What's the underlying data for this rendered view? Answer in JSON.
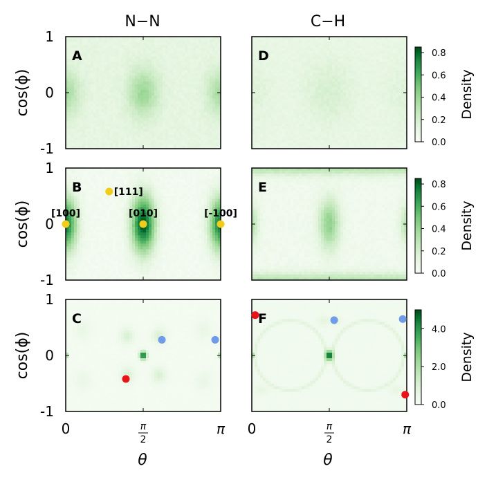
{
  "chart_data": {
    "type": "heatmap",
    "columns": [
      {
        "title": "N−N",
        "panels": [
          "A",
          "B",
          "C"
        ]
      },
      {
        "title": "C−H",
        "panels": [
          "D",
          "E",
          "F"
        ]
      }
    ],
    "xlabel": "θ",
    "ylabel": "cos(ϕ)",
    "x_ticks": [
      "0",
      "π/2",
      "π"
    ],
    "x_tick_values": [
      0,
      1.5708,
      3.1416
    ],
    "y_ticks": [
      "1",
      "0",
      "-1"
    ],
    "y_tick_values": [
      1,
      0,
      -1
    ],
    "xlim": [
      0,
      3.1416
    ],
    "ylim": [
      -1,
      1
    ],
    "colormap": "Greens",
    "panels": [
      {
        "id": "A",
        "row": 0,
        "col": 0,
        "label": "A",
        "scale": "low",
        "colorbar": null,
        "features": [
          {
            "x": 0,
            "y": 0,
            "sx": 0.2,
            "sy": 0.28,
            "w": 0.28
          },
          {
            "x": 1.5708,
            "y": 0,
            "sx": 0.22,
            "sy": 0.3,
            "w": 0.32
          },
          {
            "x": 3.1416,
            "y": 0,
            "sx": 0.2,
            "sy": 0.28,
            "w": 0.28
          }
        ],
        "background": 0.14,
        "markers": []
      },
      {
        "id": "B",
        "row": 1,
        "col": 0,
        "label": "B",
        "scale": "low",
        "colorbar": null,
        "features": [
          {
            "x": 0,
            "y": 0,
            "sx": 0.16,
            "sy": 0.34,
            "w": 0.85
          },
          {
            "x": 1.5708,
            "y": 0,
            "sx": 0.17,
            "sy": 0.36,
            "w": 0.95
          },
          {
            "x": 3.1416,
            "y": 0,
            "sx": 0.16,
            "sy": 0.34,
            "w": 0.85
          }
        ],
        "background": 0.04,
        "markers": [
          {
            "x": 0.88,
            "y": 0.58,
            "color": "#f2cc1a",
            "label": "[111]"
          },
          {
            "x": 0.0,
            "y": 0.0,
            "color": "#f2cc1a",
            "label": "[100]"
          },
          {
            "x": 1.5708,
            "y": 0.0,
            "color": "#f2cc1a",
            "label": "[010]"
          },
          {
            "x": 3.1416,
            "y": 0.0,
            "color": "#f2cc1a",
            "label": "[-100]"
          }
        ]
      },
      {
        "id": "C",
        "row": 2,
        "col": 0,
        "label": "C",
        "scale": "high",
        "colorbar": null,
        "features": [
          {
            "x": 1.5708,
            "y": 0,
            "sx": 0.05,
            "sy": 0.05,
            "w": 1.0
          },
          {
            "x": 0,
            "y": 0,
            "sx": 0.03,
            "sy": 0.03,
            "w": 0.7
          },
          {
            "x": 3.1416,
            "y": 0,
            "sx": 0.03,
            "sy": 0.03,
            "w": 0.7
          },
          {
            "x": 1.25,
            "y": 0.35,
            "sx": 0.1,
            "sy": 0.1,
            "w": 0.18
          },
          {
            "x": 1.89,
            "y": 0.35,
            "sx": 0.1,
            "sy": 0.1,
            "w": 0.18
          },
          {
            "x": 1.25,
            "y": -0.35,
            "sx": 0.1,
            "sy": 0.1,
            "w": 0.18
          },
          {
            "x": 1.89,
            "y": -0.35,
            "sx": 0.1,
            "sy": 0.1,
            "w": 0.18
          },
          {
            "x": 0.35,
            "y": 0.45,
            "sx": 0.12,
            "sy": 0.12,
            "w": 0.08
          },
          {
            "x": 0.35,
            "y": -0.45,
            "sx": 0.12,
            "sy": 0.12,
            "w": 0.08
          },
          {
            "x": 2.79,
            "y": 0.45,
            "sx": 0.12,
            "sy": 0.12,
            "w": 0.08
          },
          {
            "x": 2.79,
            "y": -0.45,
            "sx": 0.12,
            "sy": 0.12,
            "w": 0.08
          }
        ],
        "background": 0.03,
        "markers": [
          {
            "x": 1.95,
            "y": 0.28,
            "color": "#6f9be8",
            "label": ""
          },
          {
            "x": 3.03,
            "y": 0.28,
            "color": "#6f9be8",
            "label": ""
          },
          {
            "x": 1.22,
            "y": -0.42,
            "color": "#e8141a",
            "label": ""
          }
        ]
      },
      {
        "id": "D",
        "row": 0,
        "col": 1,
        "label": "D",
        "scale": "low",
        "colorbar": {
          "ticks": [
            "0.8",
            "0.6",
            "0.4",
            "0.2",
            "0.0"
          ],
          "tick_values": [
            0.8,
            0.6,
            0.4,
            0.2,
            0.0
          ],
          "max": 0.85,
          "label": "Density"
        },
        "features": [
          {
            "x": 1.5708,
            "y": 0,
            "sx": 0.35,
            "sy": 0.4,
            "w": 0.1
          },
          {
            "x": 0,
            "y": 0,
            "sx": 0.3,
            "sy": 0.4,
            "w": 0.06
          },
          {
            "x": 3.1416,
            "y": 0,
            "sx": 0.3,
            "sy": 0.4,
            "w": 0.06
          }
        ],
        "background": 0.12,
        "markers": []
      },
      {
        "id": "E",
        "row": 1,
        "col": 1,
        "label": "E",
        "scale": "low",
        "colorbar": {
          "ticks": [
            "0.8",
            "0.6",
            "0.4",
            "0.2",
            "0.0"
          ],
          "tick_values": [
            0.8,
            0.6,
            0.4,
            0.2,
            0.0
          ],
          "max": 0.85,
          "label": "Density"
        },
        "features": [
          {
            "x": 1.5708,
            "y": 0,
            "sx": 0.15,
            "sy": 0.32,
            "w": 0.45
          },
          {
            "x": 0,
            "y": 0,
            "sx": 0.1,
            "sy": 0.25,
            "w": 0.3
          },
          {
            "x": 3.1416,
            "y": 0,
            "sx": 0.1,
            "sy": 0.25,
            "w": 0.3
          }
        ],
        "background": 0.06,
        "edge_band": 0.28,
        "markers": []
      },
      {
        "id": "F",
        "row": 2,
        "col": 1,
        "label": "F",
        "scale": "high",
        "colorbar": {
          "ticks": [
            "4.0",
            "2.0",
            "0.0"
          ],
          "tick_values": [
            4.0,
            2.0,
            0.0
          ],
          "max": 5.0,
          "label": "Density"
        },
        "features": [
          {
            "x": 1.5708,
            "y": 0,
            "sx": 0.05,
            "sy": 0.06,
            "w": 1.0
          },
          {
            "x": 0,
            "y": 0,
            "sx": 0.03,
            "sy": 0.03,
            "w": 0.6
          },
          {
            "x": 3.1416,
            "y": 0,
            "sx": 0.03,
            "sy": 0.03,
            "w": 0.6
          },
          {
            "x": 1.45,
            "y": 0.62,
            "sx": 0.08,
            "sy": 0.06,
            "w": 0.1
          },
          {
            "x": 1.7,
            "y": 0.62,
            "sx": 0.08,
            "sy": 0.06,
            "w": 0.1
          },
          {
            "x": 0.2,
            "y": -0.62,
            "sx": 0.1,
            "sy": 0.06,
            "w": 0.08
          },
          {
            "x": 2.94,
            "y": -0.62,
            "sx": 0.1,
            "sy": 0.06,
            "w": 0.08
          }
        ],
        "background": 0.05,
        "ring": 0.12,
        "markers": [
          {
            "x": 0.07,
            "y": 0.72,
            "color": "#e8141a",
            "label": ""
          },
          {
            "x": 1.67,
            "y": 0.63,
            "color": "#6f9be8",
            "label": ""
          },
          {
            "x": 3.06,
            "y": 0.65,
            "color": "#6f9be8",
            "label": ""
          },
          {
            "x": 3.11,
            "y": -0.7,
            "color": "#e8141a",
            "label": ""
          }
        ]
      }
    ]
  }
}
